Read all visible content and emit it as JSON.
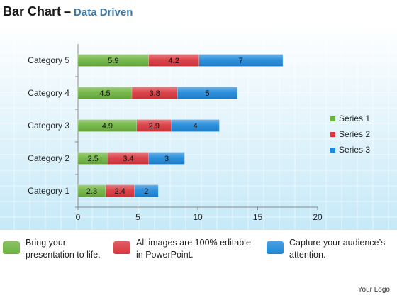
{
  "title": {
    "main": "Bar Chart",
    "dash": "–",
    "sub": "Data Driven"
  },
  "chart_data": {
    "type": "bar",
    "orientation": "horizontal",
    "stacked": true,
    "categories": [
      "Category 1",
      "Category 2",
      "Category 3",
      "Category 4",
      "Category 5"
    ],
    "series": [
      {
        "name": "Series 1",
        "values": [
          2.3,
          2.5,
          4.9,
          4.5,
          5.9
        ],
        "color": "#6db33f"
      },
      {
        "name": "Series 2",
        "values": [
          2.4,
          3.4,
          2.9,
          3.8,
          4.2
        ],
        "color": "#d9363e"
      },
      {
        "name": "Series 3",
        "values": [
          2,
          3,
          4,
          5,
          7
        ],
        "color": "#1e88d9"
      }
    ],
    "xlim": [
      0,
      20
    ],
    "xticks": [
      "0",
      "5",
      "10",
      "15",
      "20"
    ],
    "grid": true,
    "legend_position": "right",
    "data_labels": true
  },
  "notes": [
    {
      "text": "Bring your\npresentation to life.",
      "color": "#6db33f"
    },
    {
      "text": "All images are 100% editable\nin PowerPoint.",
      "color": "#d9363e"
    },
    {
      "text": "Capture your audience’s\nattention.",
      "color": "#1e88d9"
    }
  ],
  "footer": {
    "logo": "Your Logo"
  }
}
